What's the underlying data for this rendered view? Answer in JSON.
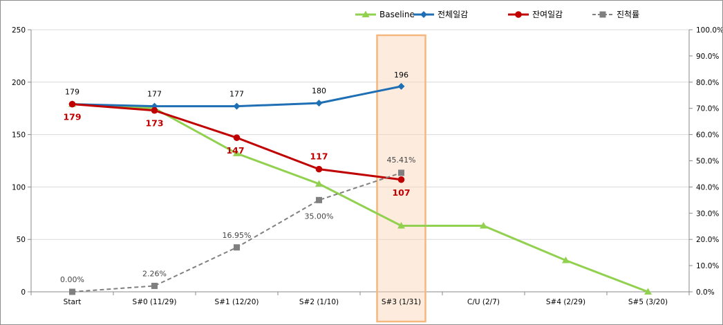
{
  "chart_data": {
    "type": "line",
    "categories": [
      "Start",
      "S#0 (11/29)",
      "S#1 (12/20)",
      "S#2 (1/10)",
      "S#3 (1/31)",
      "C/U (2/7)",
      "S#4 (2/29)",
      "S#5 (3/20)"
    ],
    "ylim": [
      0,
      250
    ],
    "y_ticks": [
      "0",
      "50",
      "100",
      "150",
      "200",
      "250"
    ],
    "y2lim": [
      0,
      100
    ],
    "y2_ticks": [
      "0.0%",
      "10.0%",
      "20.0%",
      "30.0%",
      "40.0%",
      "50.0%",
      "60.0%",
      "70.0%",
      "80.0%",
      "90.0%",
      "100.0%"
    ],
    "grid": true,
    "legend_position": "top-right",
    "highlight_category": "S#3 (1/31)",
    "series": [
      {
        "name": "Baseline",
        "axis": "left",
        "color": "#92d050",
        "marker": "triangle",
        "dash": false,
        "values": [
          179,
          175,
          132,
          103,
          63,
          63,
          30,
          0
        ],
        "labels": null
      },
      {
        "name": "전체일감",
        "axis": "left",
        "color": "#1f6fb4",
        "marker": "diamond",
        "dash": false,
        "values": [
          179,
          177,
          177,
          180,
          196,
          null,
          null,
          null
        ],
        "labels": [
          "179",
          "177",
          "177",
          "180",
          "196",
          null,
          null,
          null
        ]
      },
      {
        "name": "잔여일감",
        "axis": "left",
        "color": "#c00000",
        "marker": "circle",
        "dash": false,
        "values": [
          179,
          173,
          147,
          117,
          107,
          null,
          null,
          null
        ],
        "labels": [
          "179",
          "173",
          "147",
          "117",
          "107",
          null,
          null,
          null
        ]
      },
      {
        "name": "진척률",
        "axis": "right",
        "color": "#808080",
        "marker": "square",
        "dash": true,
        "values": [
          0,
          2.26,
          16.95,
          35.0,
          45.41,
          null,
          null,
          null
        ],
        "labels": [
          "0.00%",
          "2.26%",
          "16.95%",
          "35.00%",
          "45.41%",
          null,
          null,
          null
        ]
      }
    ]
  }
}
